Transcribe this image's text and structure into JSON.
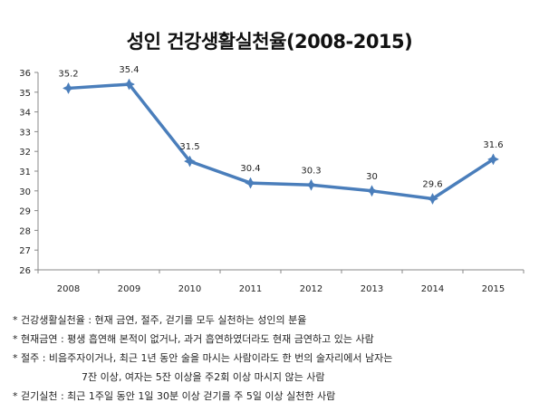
{
  "title": "성인 건강생활실천율(2008-2015)",
  "chart_data": {
    "type": "line",
    "title": "성인 건강생활실천율(2008-2015)",
    "categories": [
      "2008",
      "2009",
      "2010",
      "2011",
      "2012",
      "2013",
      "2014",
      "2015"
    ],
    "series": [
      {
        "values": [
          35.2,
          35.4,
          31.5,
          30.4,
          30.3,
          30,
          29.6,
          31.6
        ],
        "labels": [
          "35.2",
          "35.4",
          "31.5",
          "30.4",
          "30.3",
          "30",
          "29.6",
          "31.6"
        ]
      }
    ],
    "yticks": [
      "26",
      "27",
      "28",
      "29",
      "30",
      "31",
      "32",
      "33",
      "34",
      "35",
      "36"
    ],
    "ylim": [
      26,
      36
    ],
    "xlabel": "",
    "ylabel": "",
    "grid": false,
    "legend": "none",
    "line_color": "#4a7ebb"
  },
  "notes": [
    {
      "text": "* 건강생활실천율 : 현재 금연, 절주, 걷기를 모두 실천하는 성인의 분율"
    },
    {
      "text": "* 현재금연 : 평생 흡연해 본적이 없거나, 과거 흡연하였더라도 현재 금연하고 있는 사람"
    },
    {
      "text": "* 절주 : 비음주자이거나, 최근 1년 동안 술을 마시는 사람이라도 한 번의 술자리에서 남자는",
      "cont": "7잔 이상, 여자는 5잔 이상을 주2회 이상 마시지 않는 사람"
    },
    {
      "text": "* 걷기실천 : 최근 1주일 동안 1일 30분 이상 걷기를 주 5일 이상 실천한 사람"
    }
  ]
}
